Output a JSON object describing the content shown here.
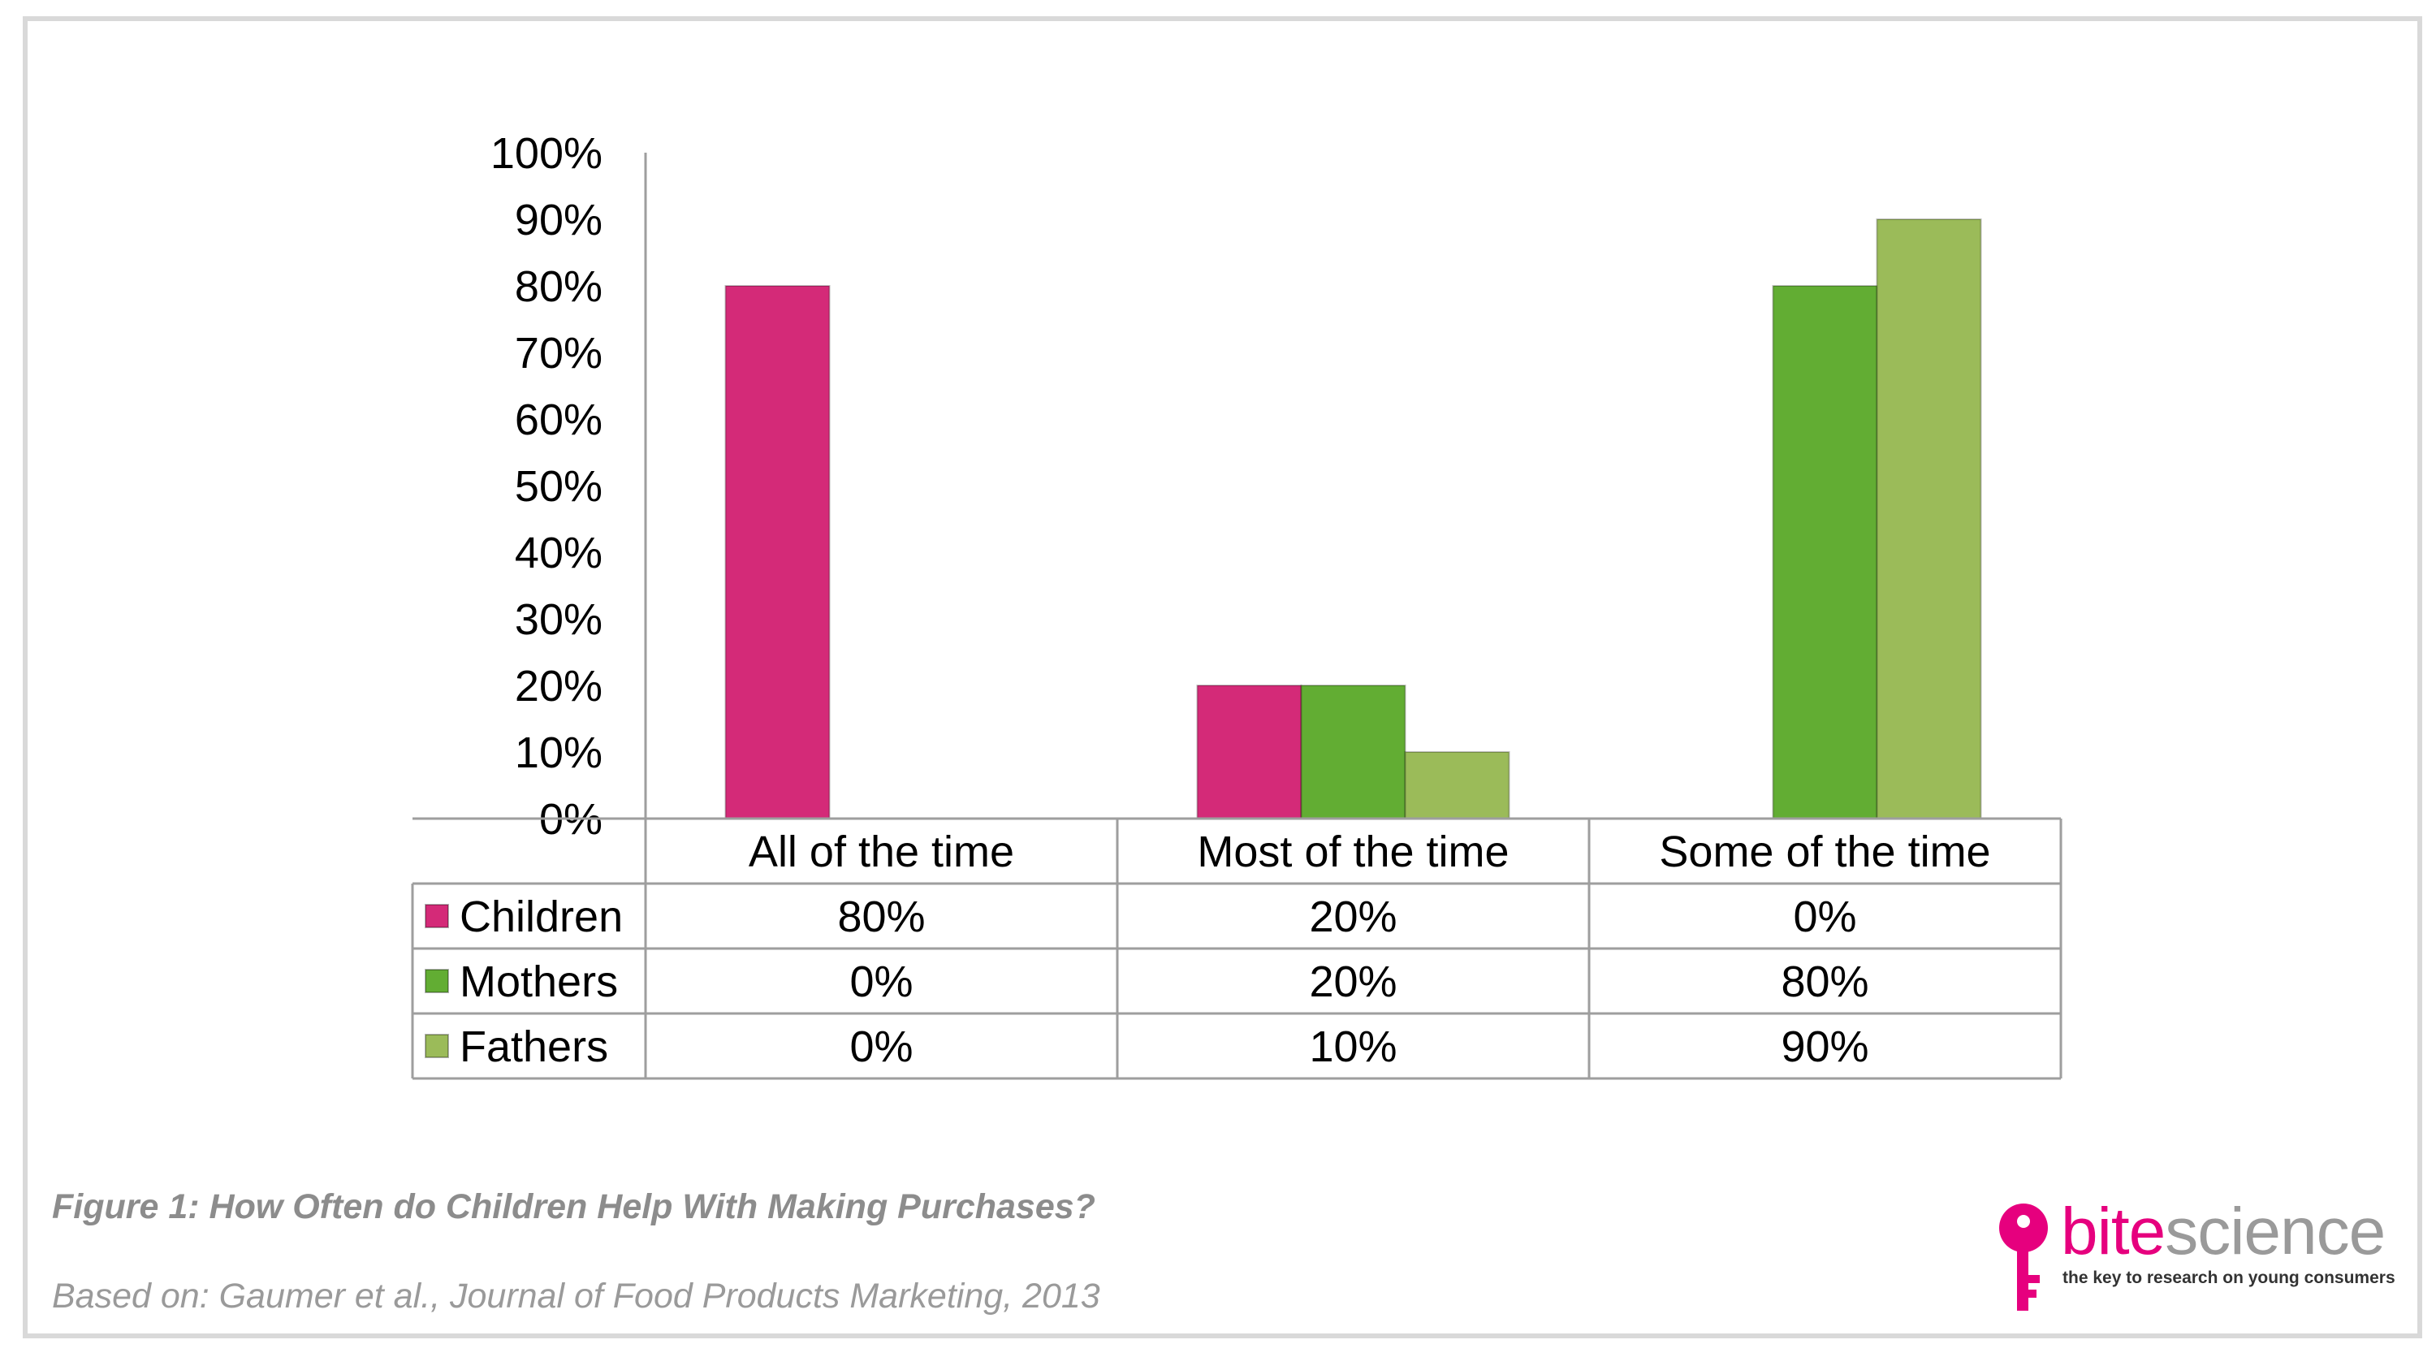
{
  "chart_data": {
    "type": "bar",
    "categories": [
      "All of the time",
      "Most of the time",
      "Some of the time"
    ],
    "series": [
      {
        "name": "Children",
        "values": [
          80,
          20,
          0
        ],
        "display": [
          "80%",
          "20%",
          "0%"
        ],
        "color": "#d42a78"
      },
      {
        "name": "Mothers",
        "values": [
          0,
          20,
          80
        ],
        "display": [
          "0%",
          "20%",
          "80%"
        ],
        "color": "#62ad33"
      },
      {
        "name": "Fathers",
        "values": [
          0,
          10,
          90
        ],
        "display": [
          "0%",
          "10%",
          "90%"
        ],
        "color": "#9bbb59"
      }
    ],
    "ylim": [
      0,
      100
    ],
    "yticks": [
      0,
      10,
      20,
      30,
      40,
      50,
      60,
      70,
      80,
      90,
      100
    ],
    "ytick_labels": [
      "0%",
      "10%",
      "20%",
      "30%",
      "40%",
      "50%",
      "60%",
      "70%",
      "80%",
      "90%",
      "100%"
    ],
    "xlabel": "",
    "ylabel": "",
    "grid": false,
    "legend": "data-table",
    "has_data_table": true
  },
  "caption": {
    "title": "Figure 1: How Often do Children Help With Making Purchases?",
    "source": "Based on: Gaumer et al., Journal of Food Products Marketing, 2013"
  },
  "logo": {
    "brand_head": "bite",
    "brand_tail": "science",
    "tagline": "the key to research on young consumers",
    "color": "#e6007e"
  }
}
